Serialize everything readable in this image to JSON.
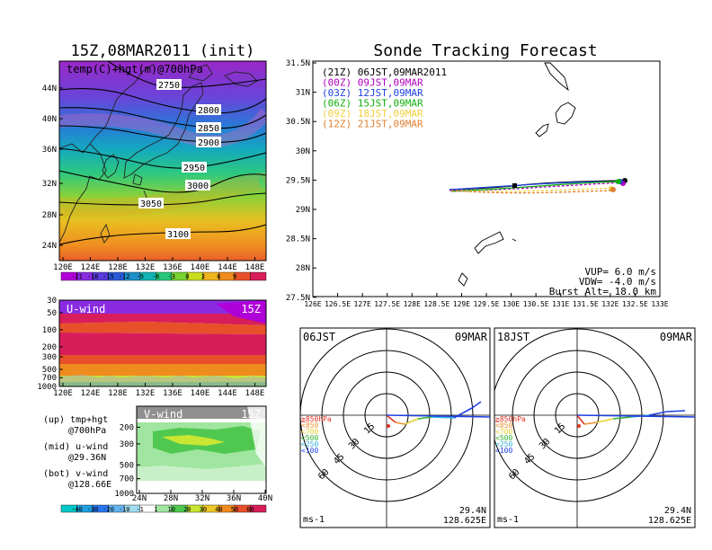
{
  "left_title": "15Z,08MAR2011 (init)",
  "right_title": "Sonde Tracking Forecast",
  "map_panel": {
    "label": "temp(C)+hgt(m)@700hPa",
    "lat_ticks": [
      "44N",
      "40N",
      "36N",
      "32N",
      "28N",
      "24N"
    ],
    "lon_ticks": [
      "120E",
      "124E",
      "128E",
      "132E",
      "136E",
      "140E",
      "144E",
      "148E"
    ],
    "contour_labels": [
      "2750",
      "2800",
      "2850",
      "2900",
      "2950",
      "3000",
      "3050",
      "3100"
    ]
  },
  "temp_colorbar": {
    "labels": [
      "-21",
      "-18",
      "-15",
      "-12",
      "-9",
      "-6",
      "-3",
      "0",
      "3",
      "6",
      "9"
    ],
    "colors": [
      "#b000d8",
      "#8a2be2",
      "#5a3cdc",
      "#2a5ad8",
      "#1e90c8",
      "#10b4b4",
      "#28c878",
      "#78d232",
      "#c8dc1e",
      "#f0b41e",
      "#f08c1e",
      "#e8502a",
      "#d81e5a"
    ]
  },
  "u_wind_panel": {
    "label": "U-wind",
    "time": "15Z",
    "p_ticks": [
      "30",
      "50",
      "100",
      "200",
      "300",
      "500",
      "700",
      "1000"
    ],
    "lon_ticks": [
      "120E",
      "124E",
      "128E",
      "132E",
      "136E",
      "140E",
      "144E",
      "148E"
    ]
  },
  "v_wind_panel": {
    "label": "V-wind",
    "time": "15Z",
    "p_ticks": [
      "200",
      "300",
      "500",
      "700",
      "1000"
    ],
    "lat_ticks": [
      "24N",
      "28N",
      "32N",
      "36N",
      "40N"
    ]
  },
  "wind_colorbar": {
    "labels": [
      "-40",
      "-30",
      "-20",
      "-10",
      "-1",
      "1",
      "10",
      "20",
      "30",
      "40",
      "50",
      "60"
    ],
    "colors": [
      "#00c8c8",
      "#20a0e0",
      "#2878f0",
      "#64b4f0",
      "#a0dcf0",
      "#ffffff",
      "#a0e6a0",
      "#50c850",
      "#c8e632",
      "#f0c828",
      "#f08c1e",
      "#e8502a",
      "#d81e5a"
    ]
  },
  "legend_text": {
    "up": "(up) tmp+hgt",
    "up2": "@700hPa",
    "mid": "(mid) u-wind",
    "mid2": "@29.36N",
    "bot": "(bot) v-wind",
    "bot2": "@128.66E"
  },
  "track_panel": {
    "lat_ticks": [
      "31.5N",
      "31N",
      "30.5N",
      "30N",
      "29.5N",
      "29N",
      "28.5N",
      "28N",
      "27.5N"
    ],
    "lon_ticks": [
      "126E",
      "126.5E",
      "127E",
      "127.5E",
      "128E",
      "128.5E",
      "129E",
      "129.5E",
      "130E",
      "130.5E",
      "131E",
      "131.5E",
      "132E",
      "132.5E",
      "133E"
    ],
    "legend": [
      {
        "label": "(21Z) 06JST,09MAR2011",
        "color": "#000000"
      },
      {
        "label": "(00Z) 09JST,09MAR",
        "color": "#b000c0"
      },
      {
        "label": "(03Z) 12JST,09MAR",
        "color": "#2040e0"
      },
      {
        "label": "(06Z) 15JST,09MAR",
        "color": "#10b010"
      },
      {
        "label": "(09Z) 18JST,09MAR",
        "color": "#f0d040"
      },
      {
        "label": "(12Z) 21JST,09MAR",
        "color": "#e08030"
      }
    ],
    "vup": "VUP= 6.0 m/s",
    "vdw": "VDW= -4.0 m/s",
    "burst": "Burst Alt= 18.0 km"
  },
  "hodographs": [
    {
      "left": "06JST",
      "right": "09MAR",
      "lat": "29.4N",
      "lon": "128.625E",
      "unit": "ms-1"
    },
    {
      "left": "18JST",
      "right": "09MAR",
      "lat": "29.4N",
      "lon": "128.625E",
      "unit": "ms-1"
    }
  ],
  "hodo_rings": [
    "15",
    "30",
    "45",
    "60"
  ],
  "hodo_levels": [
    {
      "label": "≧850hPa",
      "color": "#e03020"
    },
    {
      "label": "<850",
      "color": "#f09030"
    },
    {
      "label": "<700",
      "color": "#e0d030"
    },
    {
      "label": "<500",
      "color": "#30b030"
    },
    {
      "label": "<250",
      "color": "#30b0e0"
    },
    {
      "label": "<100",
      "color": "#2040e0"
    }
  ]
}
